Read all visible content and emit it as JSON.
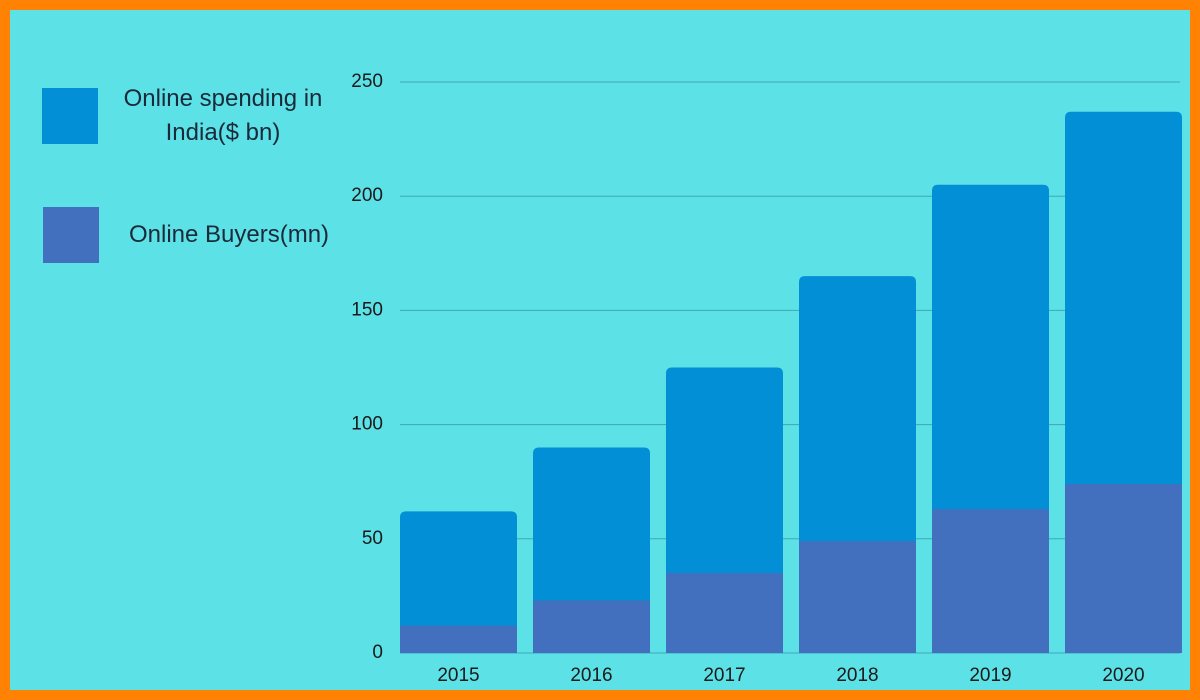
{
  "chart_data": {
    "type": "bar",
    "categories": [
      "2015",
      "2016",
      "2017",
      "2018",
      "2019",
      "2020"
    ],
    "series": [
      {
        "name": "Online spending in India($ bn)",
        "color": "#028fd6",
        "values": [
          62,
          90,
          125,
          165,
          205,
          237
        ]
      },
      {
        "name": "Online Buyers(mn)",
        "color": "#436fbf",
        "values": [
          12,
          23,
          35,
          49,
          63,
          74
        ]
      }
    ],
    "ylim": [
      0,
      250
    ],
    "yticks": [
      0,
      50,
      100,
      150,
      200,
      250
    ],
    "grid": true
  }
}
